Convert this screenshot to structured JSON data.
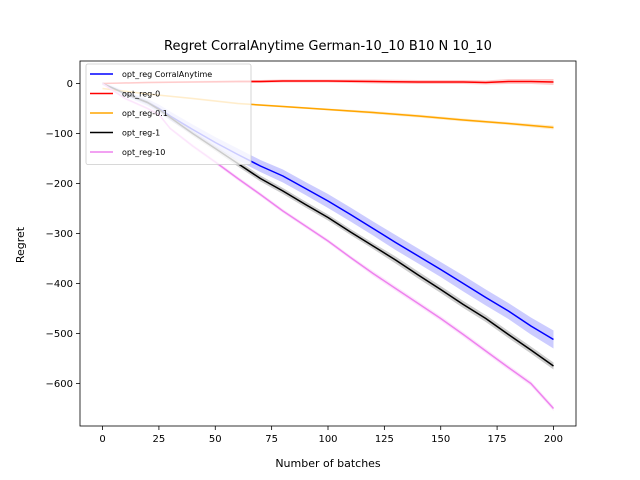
{
  "chart_data": {
    "type": "line",
    "title": "Regret CorralAnytime German-10_10 B10 N 10_10",
    "xlabel": "Number of batches",
    "ylabel": "Regret",
    "xlim": [
      -10,
      210
    ],
    "ylim": [
      -685,
      45
    ],
    "x_ticks": [
      0,
      25,
      50,
      75,
      100,
      125,
      150,
      175,
      200
    ],
    "y_ticks": [
      0,
      -100,
      -200,
      -300,
      -400,
      -500,
      -600
    ],
    "x_tick_labels": [
      "0",
      "25",
      "50",
      "75",
      "100",
      "125",
      "150",
      "175",
      "200"
    ],
    "y_tick_labels": [
      "0",
      "−100",
      "−200",
      "−300",
      "−400",
      "−500",
      "−600"
    ],
    "legend_position": "upper-left",
    "grid": false,
    "series": [
      {
        "name": "opt_reg CorralAnytime",
        "color": "#0000ff",
        "band_color": "#0000ff",
        "x": [
          0,
          10,
          20,
          25,
          30,
          40,
          50,
          60,
          70,
          80,
          90,
          100,
          110,
          120,
          130,
          140,
          150,
          160,
          170,
          180,
          190,
          200
        ],
        "y": [
          0,
          -20,
          -38,
          -50,
          -65,
          -92,
          -118,
          -142,
          -165,
          -185,
          -210,
          -235,
          -262,
          -290,
          -318,
          -345,
          -372,
          -400,
          -428,
          -455,
          -485,
          -512
        ],
        "band": [
          3,
          5,
          7,
          8,
          9,
          10,
          11,
          12,
          12,
          13,
          13,
          14,
          14,
          14,
          15,
          15,
          15,
          16,
          16,
          16,
          17,
          18
        ]
      },
      {
        "name": "opt_reg-0",
        "color": "#ff0000",
        "band_color": "#ff0000",
        "x": [
          0,
          20,
          40,
          60,
          70,
          80,
          100,
          120,
          140,
          160,
          170,
          180,
          190,
          200
        ],
        "y": [
          0,
          2,
          3,
          4,
          4,
          5,
          5,
          4,
          3,
          3,
          2,
          4,
          4,
          3
        ],
        "band": [
          1,
          2,
          2,
          3,
          3,
          3,
          3,
          4,
          4,
          4,
          4,
          5,
          5,
          6
        ]
      },
      {
        "name": "opt_reg-0.1",
        "color": "#ffa500",
        "band_color": "#ffa500",
        "x": [
          0,
          20,
          40,
          60,
          80,
          100,
          120,
          140,
          160,
          180,
          200
        ],
        "y": [
          -10,
          -21,
          -30,
          -40,
          -46,
          -52,
          -58,
          -65,
          -73,
          -80,
          -88
        ],
        "band": [
          1,
          1,
          2,
          2,
          2,
          2,
          3,
          3,
          3,
          3,
          4
        ]
      },
      {
        "name": "opt_reg-1",
        "color": "#000000",
        "band_color": "#000000",
        "x": [
          0,
          10,
          20,
          25,
          30,
          40,
          50,
          60,
          70,
          80,
          90,
          100,
          110,
          120,
          130,
          140,
          150,
          160,
          170,
          180,
          190,
          200
        ],
        "y": [
          0,
          -20,
          -38,
          -52,
          -68,
          -100,
          -130,
          -160,
          -190,
          -215,
          -242,
          -268,
          -297,
          -325,
          -353,
          -383,
          -412,
          -442,
          -470,
          -502,
          -533,
          -565
        ],
        "band": [
          2,
          3,
          4,
          4,
          5,
          5,
          5,
          6,
          6,
          6,
          6,
          6,
          6,
          6,
          7,
          7,
          7,
          7,
          7,
          7,
          7,
          7
        ]
      },
      {
        "name": "opt_reg-10",
        "color": "#ee82ee",
        "band_color": "#ee82ee",
        "x": [
          0,
          10,
          20,
          25,
          30,
          40,
          50,
          60,
          70,
          80,
          90,
          100,
          110,
          120,
          130,
          140,
          150,
          160,
          170,
          180,
          190,
          200
        ],
        "y": [
          0,
          -30,
          -50,
          -62,
          -90,
          -125,
          -157,
          -190,
          -222,
          -255,
          -285,
          -315,
          -348,
          -380,
          -410,
          -440,
          -470,
          -502,
          -535,
          -568,
          -600,
          -650
        ],
        "band": [
          2,
          3,
          3,
          3,
          3,
          4,
          4,
          4,
          4,
          4,
          4,
          4,
          4,
          5,
          5,
          5,
          5,
          5,
          5,
          5,
          5,
          5
        ]
      }
    ]
  }
}
